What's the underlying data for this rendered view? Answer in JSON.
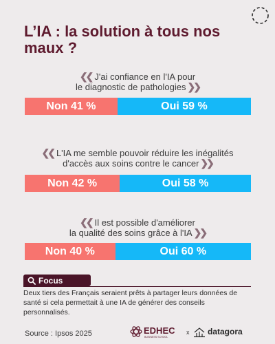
{
  "title": "L’IA : la solution à tous nos maux ?",
  "colors": {
    "title": "#5e1a2e",
    "non": "#f7746f",
    "oui": "#15b8f8",
    "focus": "#4a1428",
    "quote": "#8a6d78"
  },
  "chart_data": {
    "type": "bar",
    "orientation": "horizontal-stacked-100",
    "categories": [
      "J'ai confiance en l'IA pour le diagnostic de pathologies",
      "L'IA me semble pouvoir réduire les inégalités d'accès aux soins contre le cancer",
      "Il est possible d'améliorer la qualité des soins grâce à l'IA"
    ],
    "series": [
      {
        "name": "Non",
        "values": [
          41,
          42,
          40
        ],
        "color": "#f7746f"
      },
      {
        "name": "Oui",
        "values": [
          59,
          58,
          60
        ],
        "color": "#15b8f8"
      }
    ],
    "xlim": [
      0,
      100
    ],
    "grid": false
  },
  "questions": [
    {
      "lines": [
        "J'ai confiance en l'IA pour",
        "le diagnostic de pathologies"
      ],
      "non_label": "Non 41 %",
      "oui_label": "Oui 59 %"
    },
    {
      "lines": [
        "L'IA me semble pouvoir réduire les inégalités",
        "d'accès aux soins contre le cancer"
      ],
      "non_label": "Non 42 %",
      "oui_label": "Oui 58 %"
    },
    {
      "lines": [
        "Il est possible d'améliorer",
        "la qualité des soins grâce à l'IA"
      ],
      "non_label": "Non 40 %",
      "oui_label": "Oui 60 %"
    }
  ],
  "focus": {
    "label": "Focus",
    "icon": "magnifier-icon",
    "text": "Deux tiers des Français seraient prêts à partager leurs données de santé si cela permettait à une IA de générer des conseils personnalisés."
  },
  "footer": {
    "source": "Source : Ipsos 2025",
    "logo_edhec": "EDHEC",
    "logo_edhec_sub": "BUSINESS SCHOOL",
    "logo_separator": "x",
    "logo_datagora": "datagora"
  }
}
